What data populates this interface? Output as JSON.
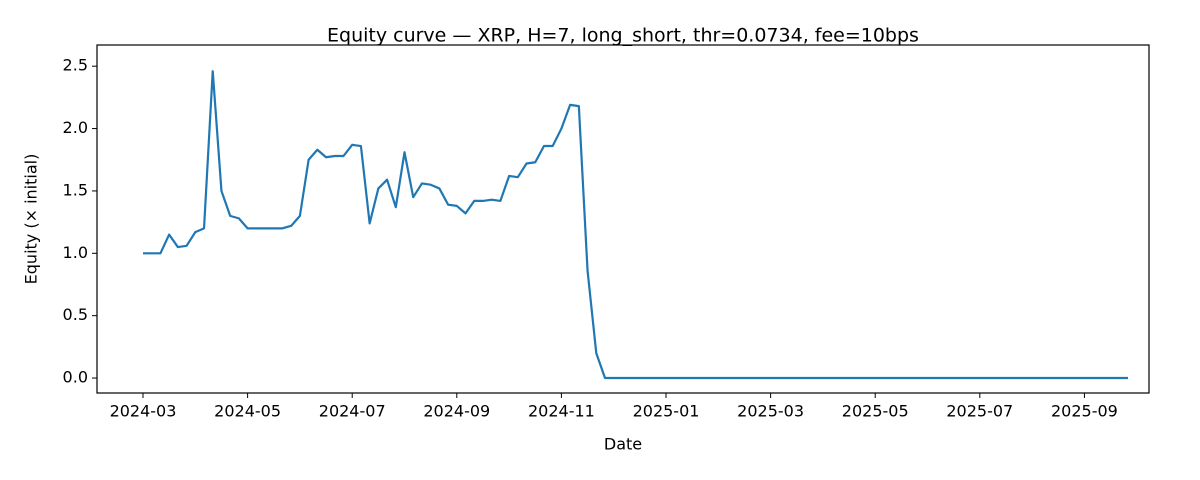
{
  "chart_data": {
    "type": "line",
    "title": "Equity curve — XRP, H=7, long_short, thr=0.0734, fee=10bps",
    "xlabel": "Date",
    "ylabel": "Equity (× initial)",
    "categories": [
      "2024-03",
      null,
      null,
      null,
      null,
      null,
      null,
      null,
      null,
      null,
      null,
      null,
      "2024-05",
      null,
      null,
      null,
      null,
      null,
      null,
      null,
      null,
      null,
      null,
      null,
      "2024-07",
      null,
      null,
      null,
      null,
      null,
      null,
      null,
      null,
      null,
      null,
      null,
      "2024-09",
      null,
      null,
      null,
      null,
      null,
      null,
      null,
      null,
      null,
      null,
      null,
      "2024-11",
      null,
      null,
      null,
      null,
      null,
      null,
      null,
      null,
      null,
      null,
      null,
      "2025-01",
      null,
      null,
      null,
      null,
      null,
      null,
      null,
      null,
      null,
      null,
      null,
      "2025-03",
      null,
      null,
      null,
      null,
      null,
      null,
      null,
      null,
      null,
      null,
      null,
      "2025-05",
      null,
      null,
      null,
      null,
      null,
      null,
      null,
      null,
      null,
      null,
      null,
      "2025-07",
      null,
      null,
      null,
      null,
      null,
      null,
      null,
      null,
      null,
      null,
      null,
      "2025-09",
      null,
      null,
      null,
      null,
      null
    ],
    "values": [
      1.0,
      1.0,
      1.0,
      1.15,
      1.05,
      1.06,
      1.17,
      1.2,
      2.46,
      1.5,
      1.3,
      1.28,
      1.2,
      1.2,
      1.2,
      1.2,
      1.2,
      1.22,
      1.3,
      1.75,
      1.83,
      1.77,
      1.78,
      1.78,
      1.87,
      1.86,
      1.24,
      1.52,
      1.59,
      1.37,
      1.81,
      1.45,
      1.56,
      1.55,
      1.52,
      1.39,
      1.38,
      1.32,
      1.42,
      1.42,
      1.43,
      1.42,
      1.62,
      1.61,
      1.72,
      1.73,
      1.86,
      1.86,
      2.0,
      2.19,
      2.18,
      0.86,
      0.2,
      0,
      0,
      0,
      0,
      0,
      0,
      0,
      0,
      0,
      0,
      0,
      0,
      0,
      0,
      0,
      0,
      0,
      0,
      0,
      0,
      0,
      0,
      0,
      0,
      0,
      0,
      0,
      0,
      0,
      0,
      0,
      0,
      0,
      0,
      0,
      0,
      0,
      0,
      0,
      0,
      0,
      0,
      0,
      0,
      0,
      0,
      0,
      0,
      0,
      0,
      0,
      0,
      0,
      0,
      0,
      0,
      0,
      0,
      0,
      0,
      0
    ],
    "color": "#1f77b4",
    "ylim": [
      -0.12,
      2.67
    ],
    "yticks": [
      {
        "value": 0,
        "label": "0.0"
      },
      0.5,
      {
        "value": 1,
        "label": "1.0"
      },
      1.5,
      {
        "value": 2,
        "label": "2.0"
      },
      2.5
    ],
    "grid": false
  }
}
